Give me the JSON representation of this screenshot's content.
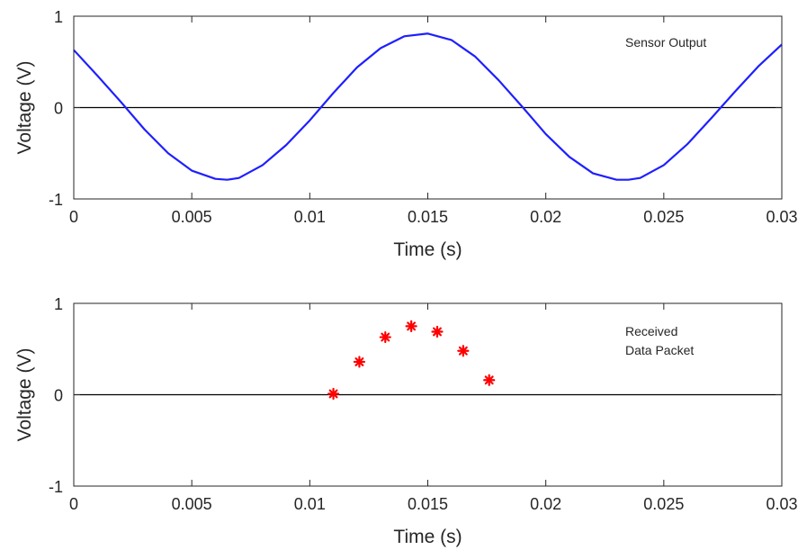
{
  "chart_data": [
    {
      "type": "line",
      "title": "",
      "xlabel": "Time (s)",
      "ylabel": "Voltage (V)",
      "xlim": [
        0,
        0.03
      ],
      "ylim": [
        -1,
        1
      ],
      "xticks": [
        0,
        0.005,
        0.01,
        0.015,
        0.02,
        0.025,
        0.03
      ],
      "xtick_labels": [
        "0",
        "0.005",
        "0.01",
        "0.015",
        "0.02",
        "0.025",
        "0.03"
      ],
      "yticks": [
        -1,
        0,
        1
      ],
      "ytick_labels": [
        "-1",
        "0",
        "1"
      ],
      "grid": false,
      "zero_line": true,
      "annotation": [
        "Sensor Output"
      ],
      "series": [
        {
          "color": "#1f1fff",
          "marker": "none",
          "x": [
            0,
            0.001,
            0.002,
            0.003,
            0.004,
            0.005,
            0.006,
            0.0065,
            0.007,
            0.008,
            0.009,
            0.01,
            0.011,
            0.012,
            0.013,
            0.014,
            0.015,
            0.016,
            0.017,
            0.018,
            0.019,
            0.02,
            0.021,
            0.022,
            0.023,
            0.0235,
            0.024,
            0.025,
            0.026,
            0.027,
            0.028,
            0.029,
            0.03
          ],
          "y": [
            0.63,
            0.35,
            0.06,
            -0.24,
            -0.5,
            -0.69,
            -0.78,
            -0.79,
            -0.77,
            -0.63,
            -0.41,
            -0.14,
            0.16,
            0.44,
            0.65,
            0.78,
            0.81,
            0.74,
            0.56,
            0.3,
            0.01,
            -0.29,
            -0.54,
            -0.72,
            -0.79,
            -0.79,
            -0.77,
            -0.63,
            -0.4,
            -0.12,
            0.17,
            0.45,
            0.69
          ]
        }
      ]
    },
    {
      "type": "scatter",
      "title": "",
      "xlabel": "Time (s)",
      "ylabel": "Voltage (V)",
      "xlim": [
        0,
        0.03
      ],
      "ylim": [
        -1,
        1
      ],
      "xticks": [
        0,
        0.005,
        0.01,
        0.015,
        0.02,
        0.025,
        0.03
      ],
      "xtick_labels": [
        "0",
        "0.005",
        "0.01",
        "0.015",
        "0.02",
        "0.025",
        "0.03"
      ],
      "yticks": [
        -1,
        0,
        1
      ],
      "ytick_labels": [
        "-1",
        "0",
        "1"
      ],
      "grid": false,
      "zero_line": true,
      "annotation": [
        "Received",
        "Data Packet"
      ],
      "series": [
        {
          "color": "#ff0000",
          "marker": "asterisk",
          "x": [
            0.011,
            0.0121,
            0.0132,
            0.0143,
            0.0154,
            0.0165,
            0.0176
          ],
          "y": [
            0.01,
            0.36,
            0.63,
            0.75,
            0.69,
            0.48,
            0.16
          ]
        }
      ]
    }
  ]
}
